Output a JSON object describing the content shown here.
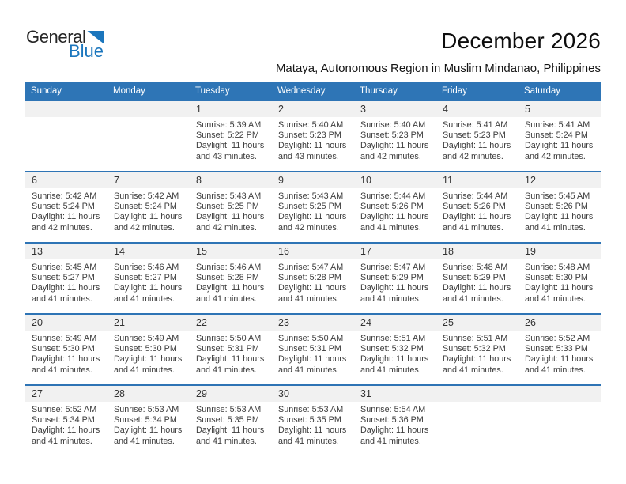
{
  "logo": {
    "part1": "General",
    "part2": "Blue"
  },
  "header": {
    "title": "December 2026",
    "subtitle": "Mataya, Autonomous Region in Muslim Mindanao, Philippines"
  },
  "colors": {
    "header_blue": "#2E75B6",
    "separator_blue": "#2E74B5",
    "band_gray": "#F1F1F1",
    "logo_blue": "#1B76BD",
    "cell_text": "#3C3C3C"
  },
  "calendar": {
    "weekday_headers": [
      "Sunday",
      "Monday",
      "Tuesday",
      "Wednesday",
      "Thursday",
      "Friday",
      "Saturday"
    ],
    "weeks": [
      [
        null,
        null,
        {
          "num": "1",
          "lines": [
            "Sunrise: 5:39 AM",
            "Sunset: 5:22 PM",
            "Daylight: 11 hours",
            "and 43 minutes."
          ]
        },
        {
          "num": "2",
          "lines": [
            "Sunrise: 5:40 AM",
            "Sunset: 5:23 PM",
            "Daylight: 11 hours",
            "and 43 minutes."
          ]
        },
        {
          "num": "3",
          "lines": [
            "Sunrise: 5:40 AM",
            "Sunset: 5:23 PM",
            "Daylight: 11 hours",
            "and 42 minutes."
          ]
        },
        {
          "num": "4",
          "lines": [
            "Sunrise: 5:41 AM",
            "Sunset: 5:23 PM",
            "Daylight: 11 hours",
            "and 42 minutes."
          ]
        },
        {
          "num": "5",
          "lines": [
            "Sunrise: 5:41 AM",
            "Sunset: 5:24 PM",
            "Daylight: 11 hours",
            "and 42 minutes."
          ]
        }
      ],
      [
        {
          "num": "6",
          "lines": [
            "Sunrise: 5:42 AM",
            "Sunset: 5:24 PM",
            "Daylight: 11 hours",
            "and 42 minutes."
          ]
        },
        {
          "num": "7",
          "lines": [
            "Sunrise: 5:42 AM",
            "Sunset: 5:24 PM",
            "Daylight: 11 hours",
            "and 42 minutes."
          ]
        },
        {
          "num": "8",
          "lines": [
            "Sunrise: 5:43 AM",
            "Sunset: 5:25 PM",
            "Daylight: 11 hours",
            "and 42 minutes."
          ]
        },
        {
          "num": "9",
          "lines": [
            "Sunrise: 5:43 AM",
            "Sunset: 5:25 PM",
            "Daylight: 11 hours",
            "and 42 minutes."
          ]
        },
        {
          "num": "10",
          "lines": [
            "Sunrise: 5:44 AM",
            "Sunset: 5:26 PM",
            "Daylight: 11 hours",
            "and 41 minutes."
          ]
        },
        {
          "num": "11",
          "lines": [
            "Sunrise: 5:44 AM",
            "Sunset: 5:26 PM",
            "Daylight: 11 hours",
            "and 41 minutes."
          ]
        },
        {
          "num": "12",
          "lines": [
            "Sunrise: 5:45 AM",
            "Sunset: 5:26 PM",
            "Daylight: 11 hours",
            "and 41 minutes."
          ]
        }
      ],
      [
        {
          "num": "13",
          "lines": [
            "Sunrise: 5:45 AM",
            "Sunset: 5:27 PM",
            "Daylight: 11 hours",
            "and 41 minutes."
          ]
        },
        {
          "num": "14",
          "lines": [
            "Sunrise: 5:46 AM",
            "Sunset: 5:27 PM",
            "Daylight: 11 hours",
            "and 41 minutes."
          ]
        },
        {
          "num": "15",
          "lines": [
            "Sunrise: 5:46 AM",
            "Sunset: 5:28 PM",
            "Daylight: 11 hours",
            "and 41 minutes."
          ]
        },
        {
          "num": "16",
          "lines": [
            "Sunrise: 5:47 AM",
            "Sunset: 5:28 PM",
            "Daylight: 11 hours",
            "and 41 minutes."
          ]
        },
        {
          "num": "17",
          "lines": [
            "Sunrise: 5:47 AM",
            "Sunset: 5:29 PM",
            "Daylight: 11 hours",
            "and 41 minutes."
          ]
        },
        {
          "num": "18",
          "lines": [
            "Sunrise: 5:48 AM",
            "Sunset: 5:29 PM",
            "Daylight: 11 hours",
            "and 41 minutes."
          ]
        },
        {
          "num": "19",
          "lines": [
            "Sunrise: 5:48 AM",
            "Sunset: 5:30 PM",
            "Daylight: 11 hours",
            "and 41 minutes."
          ]
        }
      ],
      [
        {
          "num": "20",
          "lines": [
            "Sunrise: 5:49 AM",
            "Sunset: 5:30 PM",
            "Daylight: 11 hours",
            "and 41 minutes."
          ]
        },
        {
          "num": "21",
          "lines": [
            "Sunrise: 5:49 AM",
            "Sunset: 5:30 PM",
            "Daylight: 11 hours",
            "and 41 minutes."
          ]
        },
        {
          "num": "22",
          "lines": [
            "Sunrise: 5:50 AM",
            "Sunset: 5:31 PM",
            "Daylight: 11 hours",
            "and 41 minutes."
          ]
        },
        {
          "num": "23",
          "lines": [
            "Sunrise: 5:50 AM",
            "Sunset: 5:31 PM",
            "Daylight: 11 hours",
            "and 41 minutes."
          ]
        },
        {
          "num": "24",
          "lines": [
            "Sunrise: 5:51 AM",
            "Sunset: 5:32 PM",
            "Daylight: 11 hours",
            "and 41 minutes."
          ]
        },
        {
          "num": "25",
          "lines": [
            "Sunrise: 5:51 AM",
            "Sunset: 5:32 PM",
            "Daylight: 11 hours",
            "and 41 minutes."
          ]
        },
        {
          "num": "26",
          "lines": [
            "Sunrise: 5:52 AM",
            "Sunset: 5:33 PM",
            "Daylight: 11 hours",
            "and 41 minutes."
          ]
        }
      ],
      [
        {
          "num": "27",
          "lines": [
            "Sunrise: 5:52 AM",
            "Sunset: 5:34 PM",
            "Daylight: 11 hours",
            "and 41 minutes."
          ]
        },
        {
          "num": "28",
          "lines": [
            "Sunrise: 5:53 AM",
            "Sunset: 5:34 PM",
            "Daylight: 11 hours",
            "and 41 minutes."
          ]
        },
        {
          "num": "29",
          "lines": [
            "Sunrise: 5:53 AM",
            "Sunset: 5:35 PM",
            "Daylight: 11 hours",
            "and 41 minutes."
          ]
        },
        {
          "num": "30",
          "lines": [
            "Sunrise: 5:53 AM",
            "Sunset: 5:35 PM",
            "Daylight: 11 hours",
            "and 41 minutes."
          ]
        },
        {
          "num": "31",
          "lines": [
            "Sunrise: 5:54 AM",
            "Sunset: 5:36 PM",
            "Daylight: 11 hours",
            "and 41 minutes."
          ]
        },
        null,
        null
      ]
    ]
  }
}
